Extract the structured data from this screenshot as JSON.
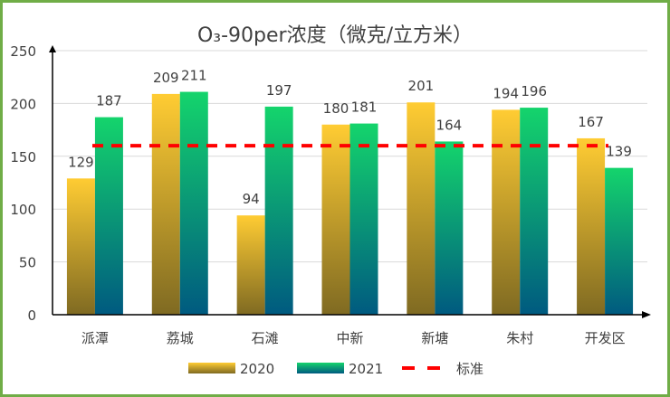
{
  "chart_data": {
    "type": "bar",
    "title": "O₃-90per浓度（微克/立方米）",
    "categories": [
      "派潭",
      "荔城",
      "石滩",
      "中新",
      "新塘",
      "朱村",
      "开发区"
    ],
    "series": [
      {
        "name": "2020",
        "values": [
          129,
          209,
          94,
          180,
          201,
          194,
          167
        ],
        "color_top": "#FFCC33",
        "color_bottom": "#7F6A22"
      },
      {
        "name": "2021",
        "values": [
          187,
          211,
          197,
          181,
          164,
          196,
          139
        ],
        "color_top": "#14D46C",
        "color_bottom": "#005A80"
      }
    ],
    "reference_line": {
      "name": "标准",
      "value": 160,
      "color": "#FF0000",
      "style": "dashed"
    },
    "ylim": [
      0,
      250
    ],
    "yticks": [
      0,
      50,
      100,
      150,
      200,
      250
    ],
    "xlabel": "",
    "ylabel": "",
    "grid": true,
    "data_labels": true,
    "legend_position": "bottom",
    "border_color": "#70AD47"
  }
}
